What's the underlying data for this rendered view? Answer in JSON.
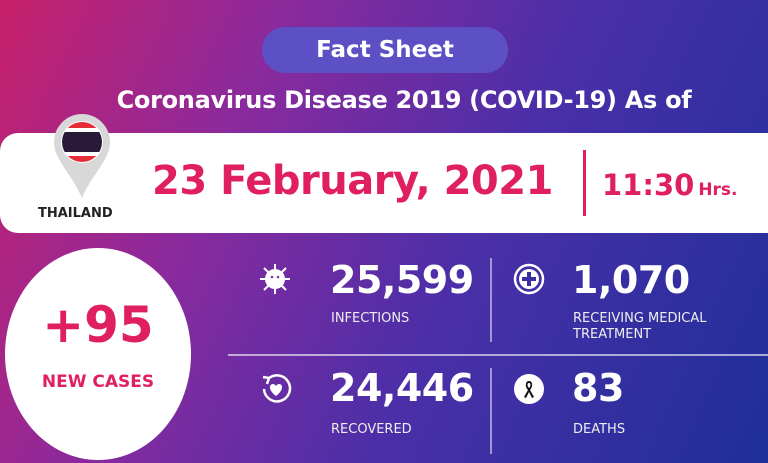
{
  "header": {
    "badge": "Fact Sheet",
    "subtitle": "Coronavirus Disease 2019 (COVID-19) As of"
  },
  "location": {
    "country": "THAILAND"
  },
  "date": {
    "date": "23 February, 2021",
    "time": "11:30",
    "time_unit": "Hrs."
  },
  "new_cases": {
    "value": "+95",
    "label": "NEW CASES"
  },
  "stats": [
    {
      "icon": "virus-icon",
      "value": "25,599",
      "label": "INFECTIONS"
    },
    {
      "icon": "medical-plus-icon",
      "value": "1,070",
      "label": "RECEIVING MEDICAL TREATMENT"
    },
    {
      "icon": "recovered-heart-icon",
      "value": "24,446",
      "label": "RECOVERED"
    },
    {
      "icon": "black-ribbon-icon",
      "value": "83",
      "label": "DEATHS"
    }
  ],
  "colors": {
    "accent": "#e01f5f",
    "badge": "#5d4fc4",
    "gradient_start": "#c8206a",
    "gradient_end": "#1e2f9a"
  }
}
